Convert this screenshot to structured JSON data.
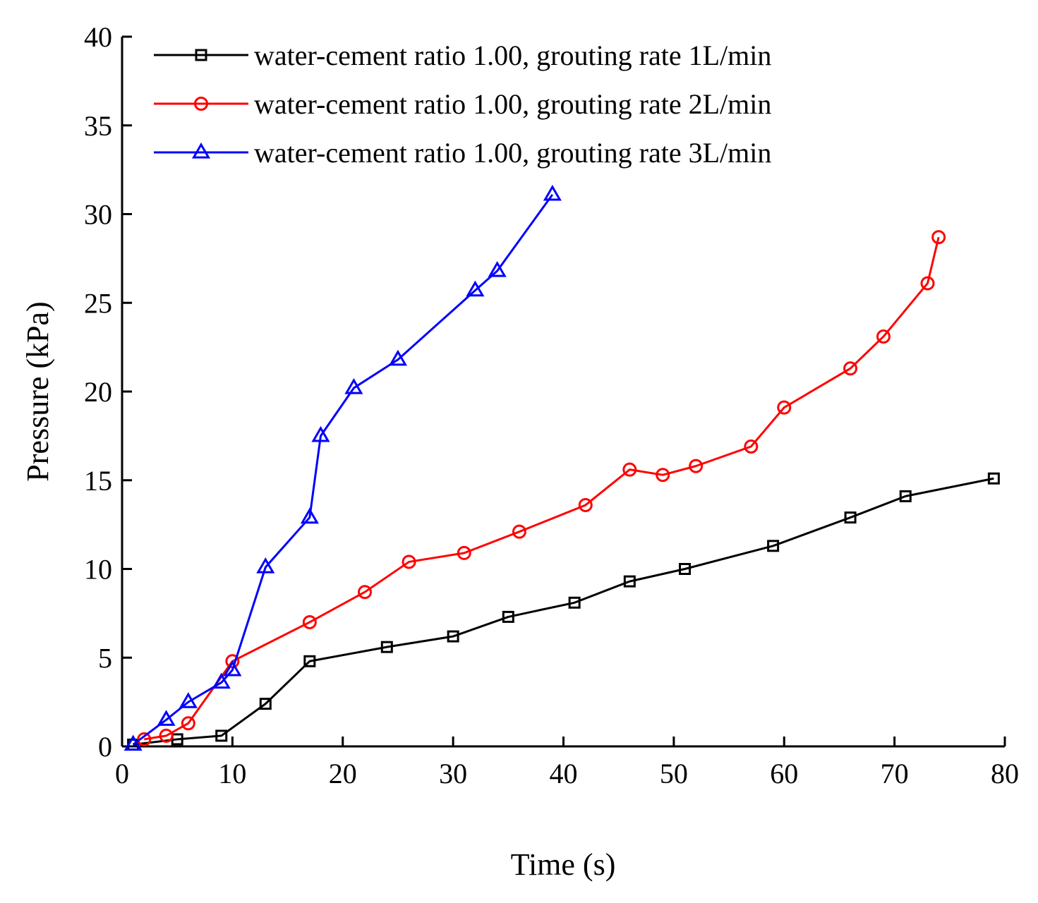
{
  "chart_data": {
    "type": "line",
    "xlabel": "Time (s)",
    "ylabel": "Pressure (kPa)",
    "xlim": [
      0,
      80
    ],
    "ylim": [
      0,
      40
    ],
    "xticks": [
      0,
      10,
      20,
      30,
      40,
      50,
      60,
      70,
      80
    ],
    "yticks": [
      0,
      5,
      10,
      15,
      20,
      25,
      30,
      35,
      40
    ],
    "legend_position": "top-right",
    "grid": false,
    "series": [
      {
        "name": "water-cement ratio 1.00, grouting rate 1L/min",
        "color": "#000000",
        "marker": "square",
        "x": [
          1,
          5,
          9,
          13,
          17,
          24,
          30,
          35,
          41,
          46,
          51,
          59,
          66,
          71,
          79
        ],
        "y": [
          0.1,
          0.4,
          0.6,
          2.4,
          4.8,
          5.6,
          6.2,
          7.3,
          8.1,
          9.3,
          10.0,
          11.3,
          12.9,
          14.1,
          15.1
        ]
      },
      {
        "name": "water-cement ratio 1.00, grouting rate 2L/min",
        "color": "#ff0000",
        "marker": "circle",
        "x": [
          2,
          4,
          6,
          10,
          17,
          22,
          26,
          31,
          36,
          42,
          46,
          49,
          52,
          57,
          60,
          66,
          69,
          73,
          74
        ],
        "y": [
          0.4,
          0.6,
          1.3,
          4.8,
          7.0,
          8.7,
          10.4,
          10.9,
          12.1,
          13.6,
          15.6,
          15.3,
          15.8,
          16.9,
          19.1,
          21.3,
          23.1,
          26.1,
          28.7
        ]
      },
      {
        "name": "water-cement ratio 1.00, grouting rate 3L/min",
        "color": "#0000ff",
        "marker": "triangle",
        "x": [
          1,
          4,
          6,
          9,
          10,
          13,
          17,
          18,
          21,
          25,
          32,
          34,
          39
        ],
        "y": [
          0.1,
          1.5,
          2.5,
          3.6,
          4.3,
          10.1,
          12.9,
          17.5,
          20.2,
          21.8,
          25.7,
          26.8,
          31.1
        ]
      }
    ]
  }
}
